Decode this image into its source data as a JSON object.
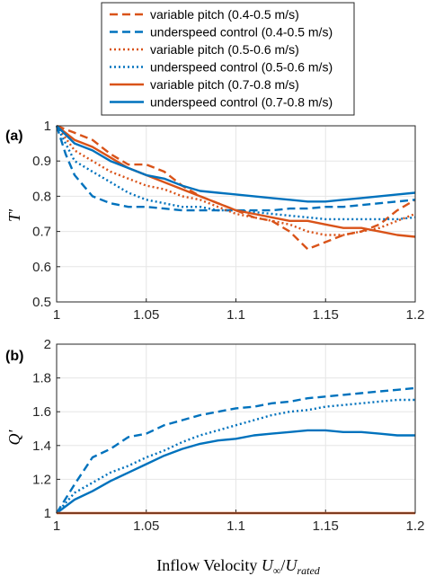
{
  "figure": {
    "xlabel_text": "Inflow Velocity ",
    "xlabel_math": "U",
    "xlabel_sub1": "∞",
    "xlabel_slash": "/",
    "xlabel_math2": "U",
    "xlabel_sub2": "rated"
  },
  "colors": {
    "orange": "#d95319",
    "blue": "#0072bd",
    "grid": "#e6e6e6",
    "axis": "#262626"
  },
  "legend": [
    {
      "label": "variable pitch (0.4-0.5 m/s)",
      "color": "#d95319",
      "style": "dashed"
    },
    {
      "label": "underspeed control (0.4-0.5 m/s)",
      "color": "#0072bd",
      "style": "dashed"
    },
    {
      "label": "variable pitch (0.5-0.6 m/s)",
      "color": "#d95319",
      "style": "dotted"
    },
    {
      "label": "underspeed control (0.5-0.6 m/s)",
      "color": "#0072bd",
      "style": "dotted"
    },
    {
      "label": "variable pitch (0.7-0.8 m/s)",
      "color": "#d95319",
      "style": "solid"
    },
    {
      "label": "underspeed control (0.7-0.8 m/s)",
      "color": "#0072bd",
      "style": "solid"
    }
  ],
  "chart_data": [
    {
      "type": "line",
      "panel": "(a)",
      "ylabel": "T'",
      "xlim": [
        1,
        1.2
      ],
      "ylim": [
        0.5,
        1.0
      ],
      "xticks": [
        "1",
        "1.05",
        "1.1",
        "1.15",
        "1.2"
      ],
      "yticks": [
        "0.5",
        "0.6",
        "0.7",
        "0.8",
        "0.9",
        "1"
      ],
      "grid": true,
      "series": [
        {
          "name": "variable pitch (0.4-0.5 m/s)",
          "color": "#d95319",
          "style": "dashed",
          "x": [
            1.0,
            1.01,
            1.02,
            1.03,
            1.04,
            1.05,
            1.06,
            1.07,
            1.08,
            1.09,
            1.1,
            1.11,
            1.12,
            1.13,
            1.14,
            1.15,
            1.16,
            1.17,
            1.18,
            1.19,
            1.2
          ],
          "y": [
            1.0,
            0.98,
            0.96,
            0.92,
            0.89,
            0.89,
            0.87,
            0.83,
            0.8,
            0.78,
            0.76,
            0.74,
            0.73,
            0.7,
            0.65,
            0.67,
            0.69,
            0.7,
            0.72,
            0.76,
            0.79
          ]
        },
        {
          "name": "underspeed control (0.4-0.5 m/s)",
          "color": "#0072bd",
          "style": "dashed",
          "x": [
            1.0,
            1.005,
            1.01,
            1.02,
            1.03,
            1.04,
            1.05,
            1.06,
            1.07,
            1.08,
            1.09,
            1.1,
            1.11,
            1.12,
            1.13,
            1.14,
            1.15,
            1.16,
            1.17,
            1.18,
            1.19,
            1.2
          ],
          "y": [
            1.0,
            0.92,
            0.86,
            0.8,
            0.78,
            0.77,
            0.77,
            0.765,
            0.76,
            0.76,
            0.76,
            0.76,
            0.76,
            0.76,
            0.765,
            0.765,
            0.77,
            0.77,
            0.775,
            0.78,
            0.785,
            0.79
          ]
        },
        {
          "name": "variable pitch (0.5-0.6 m/s)",
          "color": "#d95319",
          "style": "dotted",
          "x": [
            1.0,
            1.01,
            1.02,
            1.03,
            1.04,
            1.05,
            1.06,
            1.07,
            1.08,
            1.09,
            1.1,
            1.11,
            1.12,
            1.13,
            1.14,
            1.15,
            1.16,
            1.17,
            1.18,
            1.19,
            1.2
          ],
          "y": [
            1.0,
            0.93,
            0.9,
            0.87,
            0.85,
            0.83,
            0.82,
            0.8,
            0.79,
            0.77,
            0.75,
            0.74,
            0.73,
            0.72,
            0.7,
            0.69,
            0.69,
            0.7,
            0.71,
            0.73,
            0.75
          ]
        },
        {
          "name": "underspeed control (0.5-0.6 m/s)",
          "color": "#0072bd",
          "style": "dotted",
          "x": [
            1.0,
            1.01,
            1.02,
            1.03,
            1.04,
            1.05,
            1.06,
            1.07,
            1.08,
            1.09,
            1.1,
            1.11,
            1.12,
            1.13,
            1.14,
            1.15,
            1.16,
            1.17,
            1.18,
            1.19,
            1.2
          ],
          "y": [
            1.0,
            0.9,
            0.87,
            0.84,
            0.81,
            0.79,
            0.78,
            0.77,
            0.77,
            0.76,
            0.76,
            0.755,
            0.75,
            0.745,
            0.74,
            0.735,
            0.735,
            0.735,
            0.735,
            0.735,
            0.74
          ]
        },
        {
          "name": "variable pitch (0.7-0.8 m/s)",
          "color": "#d95319",
          "style": "solid",
          "x": [
            1.0,
            1.01,
            1.02,
            1.03,
            1.04,
            1.05,
            1.06,
            1.07,
            1.08,
            1.09,
            1.1,
            1.11,
            1.12,
            1.13,
            1.14,
            1.15,
            1.16,
            1.17,
            1.18,
            1.19,
            1.2
          ],
          "y": [
            1.0,
            0.96,
            0.94,
            0.91,
            0.88,
            0.86,
            0.84,
            0.82,
            0.8,
            0.78,
            0.76,
            0.75,
            0.74,
            0.73,
            0.73,
            0.72,
            0.71,
            0.71,
            0.7,
            0.69,
            0.685
          ]
        },
        {
          "name": "underspeed control (0.7-0.8 m/s)",
          "color": "#0072bd",
          "style": "solid",
          "x": [
            1.0,
            1.01,
            1.02,
            1.03,
            1.04,
            1.05,
            1.06,
            1.07,
            1.08,
            1.09,
            1.1,
            1.11,
            1.12,
            1.13,
            1.14,
            1.15,
            1.16,
            1.17,
            1.18,
            1.19,
            1.2
          ],
          "y": [
            1.0,
            0.95,
            0.93,
            0.9,
            0.88,
            0.86,
            0.85,
            0.83,
            0.815,
            0.81,
            0.805,
            0.8,
            0.795,
            0.79,
            0.785,
            0.785,
            0.79,
            0.795,
            0.8,
            0.805,
            0.81
          ]
        }
      ]
    },
    {
      "type": "line",
      "panel": "(b)",
      "ylabel": "Q'",
      "xlim": [
        1,
        1.2
      ],
      "ylim": [
        1.0,
        2.0
      ],
      "xticks": [
        "1",
        "1.05",
        "1.1",
        "1.15",
        "1.2"
      ],
      "yticks": [
        "1",
        "1.2",
        "1.4",
        "1.6",
        "1.8",
        "2"
      ],
      "grid": true,
      "series": [
        {
          "name": "underspeed control (0.4-0.5 m/s)",
          "color": "#0072bd",
          "style": "dashed",
          "x": [
            1.0,
            1.01,
            1.02,
            1.03,
            1.04,
            1.05,
            1.06,
            1.07,
            1.08,
            1.09,
            1.1,
            1.11,
            1.12,
            1.13,
            1.14,
            1.15,
            1.16,
            1.17,
            1.18,
            1.19,
            1.2
          ],
          "y": [
            1.0,
            1.17,
            1.33,
            1.38,
            1.45,
            1.47,
            1.52,
            1.55,
            1.58,
            1.6,
            1.62,
            1.63,
            1.65,
            1.66,
            1.68,
            1.69,
            1.7,
            1.71,
            1.72,
            1.73,
            1.74
          ]
        },
        {
          "name": "underspeed control (0.5-0.6 m/s)",
          "color": "#0072bd",
          "style": "dotted",
          "x": [
            1.0,
            1.01,
            1.02,
            1.03,
            1.04,
            1.05,
            1.06,
            1.07,
            1.08,
            1.09,
            1.1,
            1.11,
            1.12,
            1.13,
            1.14,
            1.15,
            1.16,
            1.17,
            1.18,
            1.19,
            1.2
          ],
          "y": [
            1.0,
            1.12,
            1.18,
            1.24,
            1.28,
            1.33,
            1.37,
            1.42,
            1.46,
            1.49,
            1.52,
            1.55,
            1.58,
            1.6,
            1.61,
            1.63,
            1.64,
            1.65,
            1.66,
            1.67,
            1.67
          ]
        },
        {
          "name": "underspeed control (0.7-0.8 m/s)",
          "color": "#0072bd",
          "style": "solid",
          "x": [
            1.0,
            1.01,
            1.02,
            1.03,
            1.04,
            1.05,
            1.06,
            1.07,
            1.08,
            1.09,
            1.1,
            1.11,
            1.12,
            1.13,
            1.14,
            1.15,
            1.16,
            1.17,
            1.18,
            1.19,
            1.2
          ],
          "y": [
            1.0,
            1.08,
            1.13,
            1.19,
            1.24,
            1.29,
            1.34,
            1.38,
            1.41,
            1.43,
            1.44,
            1.46,
            1.47,
            1.48,
            1.49,
            1.49,
            1.48,
            1.48,
            1.47,
            1.46,
            1.46
          ]
        },
        {
          "name": "variable pitch",
          "color": "#d95319",
          "style": "solid",
          "x": [
            1.0,
            1.2
          ],
          "y": [
            1.0,
            1.0
          ]
        }
      ]
    }
  ]
}
